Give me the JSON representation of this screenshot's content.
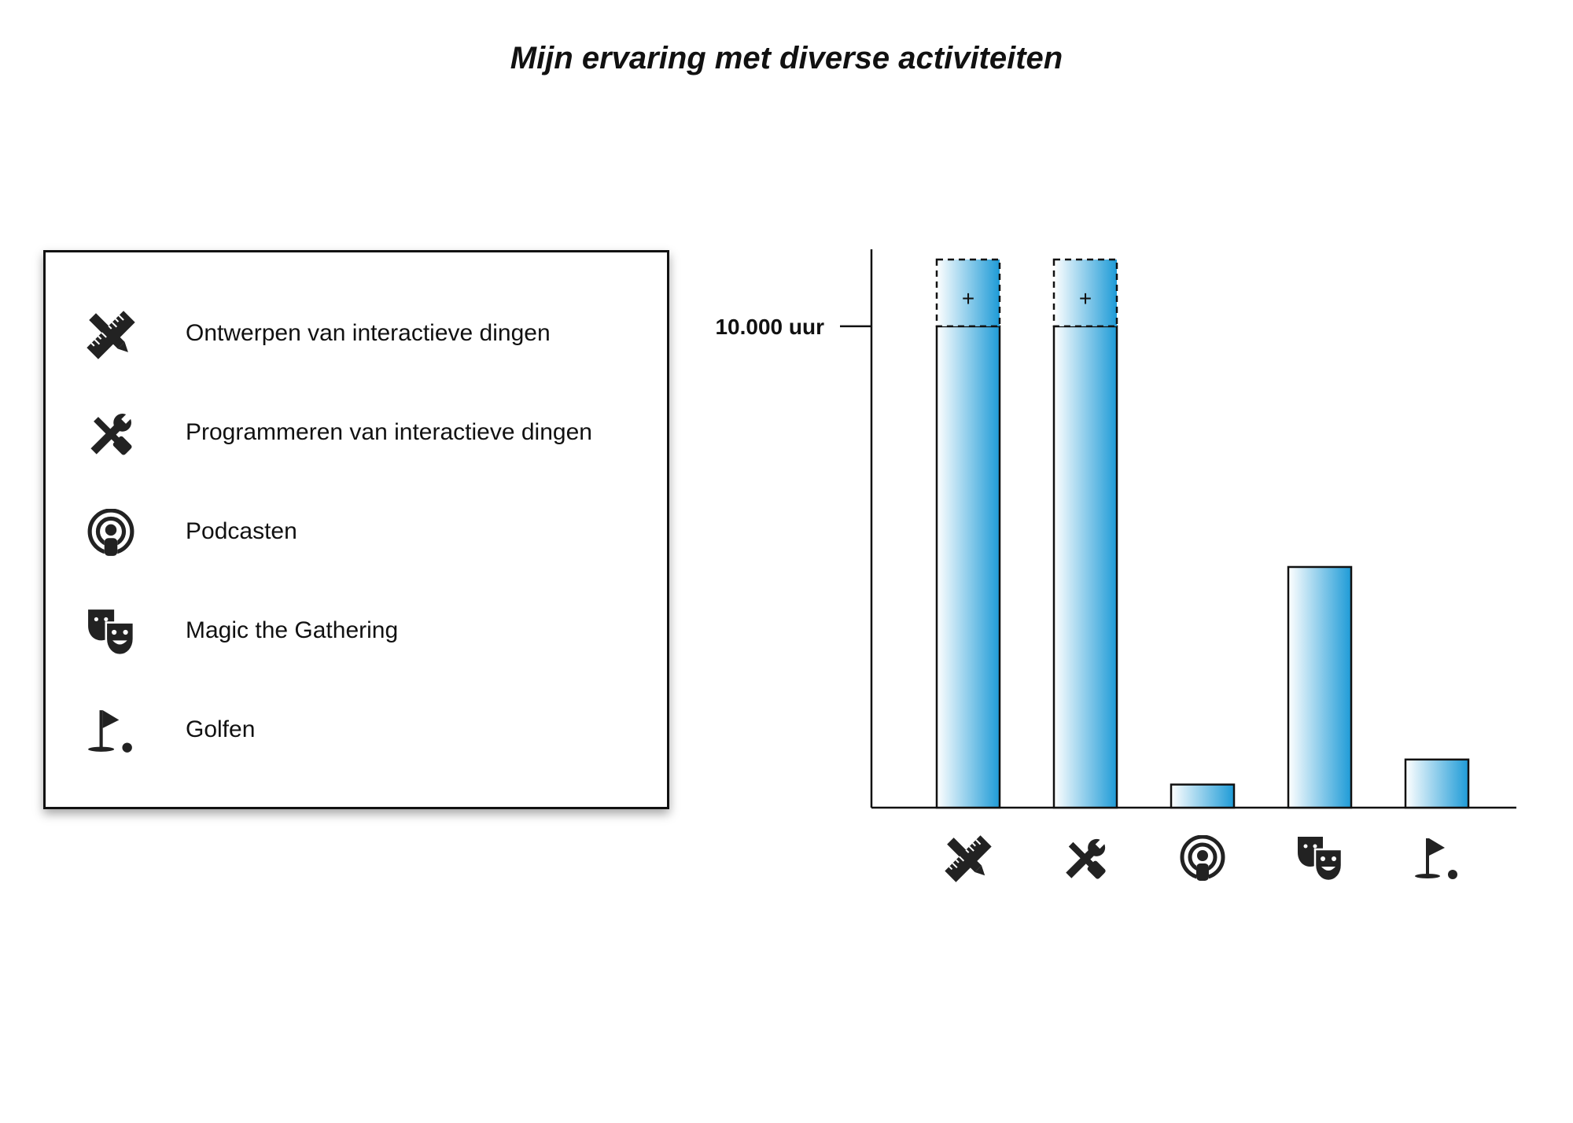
{
  "chart_data": {
    "type": "bar",
    "title": "Mijn ervaring met diverse activiteiten",
    "categories": [
      "Ontwerpen van interactieve dingen",
      "Programmeren van interactieve dingen",
      "Podcasten",
      "Magic the Gathering",
      "Golfen"
    ],
    "category_icons": [
      "design-tools-icon",
      "wrench-screwdriver-icon",
      "podcast-icon",
      "theater-masks-icon",
      "golf-flag-icon"
    ],
    "values": [
      10000,
      10000,
      480,
      5000,
      1000
    ],
    "exceeds_shown": [
      true,
      true,
      false,
      false,
      false
    ],
    "overflow_marker": "+",
    "ylim": [
      0,
      11600
    ],
    "yticks": [
      {
        "value": 10000,
        "label": "10.000 uur"
      }
    ],
    "xlabel": "",
    "ylabel": "",
    "grid": false,
    "legend_placement": "left",
    "colors": {
      "bar_dark": "#1e9bd7",
      "bar_light": "#ffffff",
      "stroke": "#111111"
    }
  }
}
